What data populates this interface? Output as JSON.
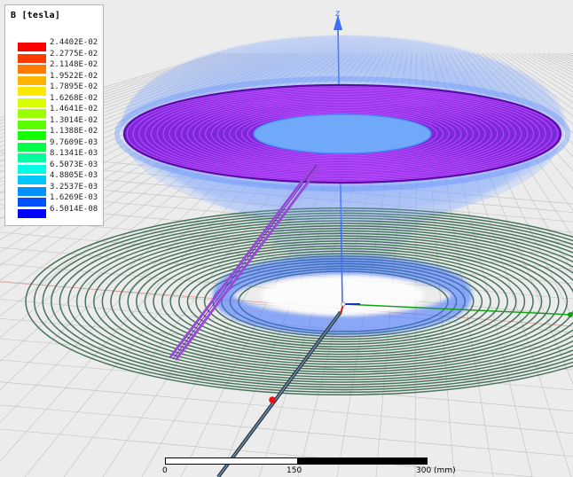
{
  "legend": {
    "title": "B [tesla]",
    "entries": [
      {
        "value": "2.4402E-02",
        "color": "#ff0000"
      },
      {
        "value": "2.2775E-02",
        "color": "#ff3a00"
      },
      {
        "value": "2.1148E-02",
        "color": "#ff7a00"
      },
      {
        "value": "1.9522E-02",
        "color": "#ffb400"
      },
      {
        "value": "1.7895E-02",
        "color": "#ffe800"
      },
      {
        "value": "1.6268E-02",
        "color": "#d8ff00"
      },
      {
        "value": "1.4641E-02",
        "color": "#9cff00"
      },
      {
        "value": "1.3014E-02",
        "color": "#5cff00"
      },
      {
        "value": "1.1388E-02",
        "color": "#14ff00"
      },
      {
        "value": "9.7609E-03",
        "color": "#00ff4a"
      },
      {
        "value": "8.1341E-03",
        "color": "#00ff9c"
      },
      {
        "value": "6.5073E-03",
        "color": "#00ffe4"
      },
      {
        "value": "4.8805E-03",
        "color": "#00c8ff"
      },
      {
        "value": "3.2537E-03",
        "color": "#0090ff"
      },
      {
        "value": "1.6269E-03",
        "color": "#0050ff"
      },
      {
        "value": "6.5014E-08",
        "color": "#0000ff"
      }
    ]
  },
  "axes": {
    "z_label": "z"
  },
  "scale": {
    "tick0": "0",
    "tick1": "150",
    "tick2": "300 (mm)"
  },
  "colors": {
    "top_coil": "#8a1ee0",
    "bottom_coil": "#3e6e52",
    "field_haze": "#4a7eff",
    "lead_wire": "#9a4ad8",
    "x_axis": "#d01414",
    "y_axis": "#10a010",
    "z_axis": "#3c6eff",
    "grid": "#c8c8c8"
  }
}
